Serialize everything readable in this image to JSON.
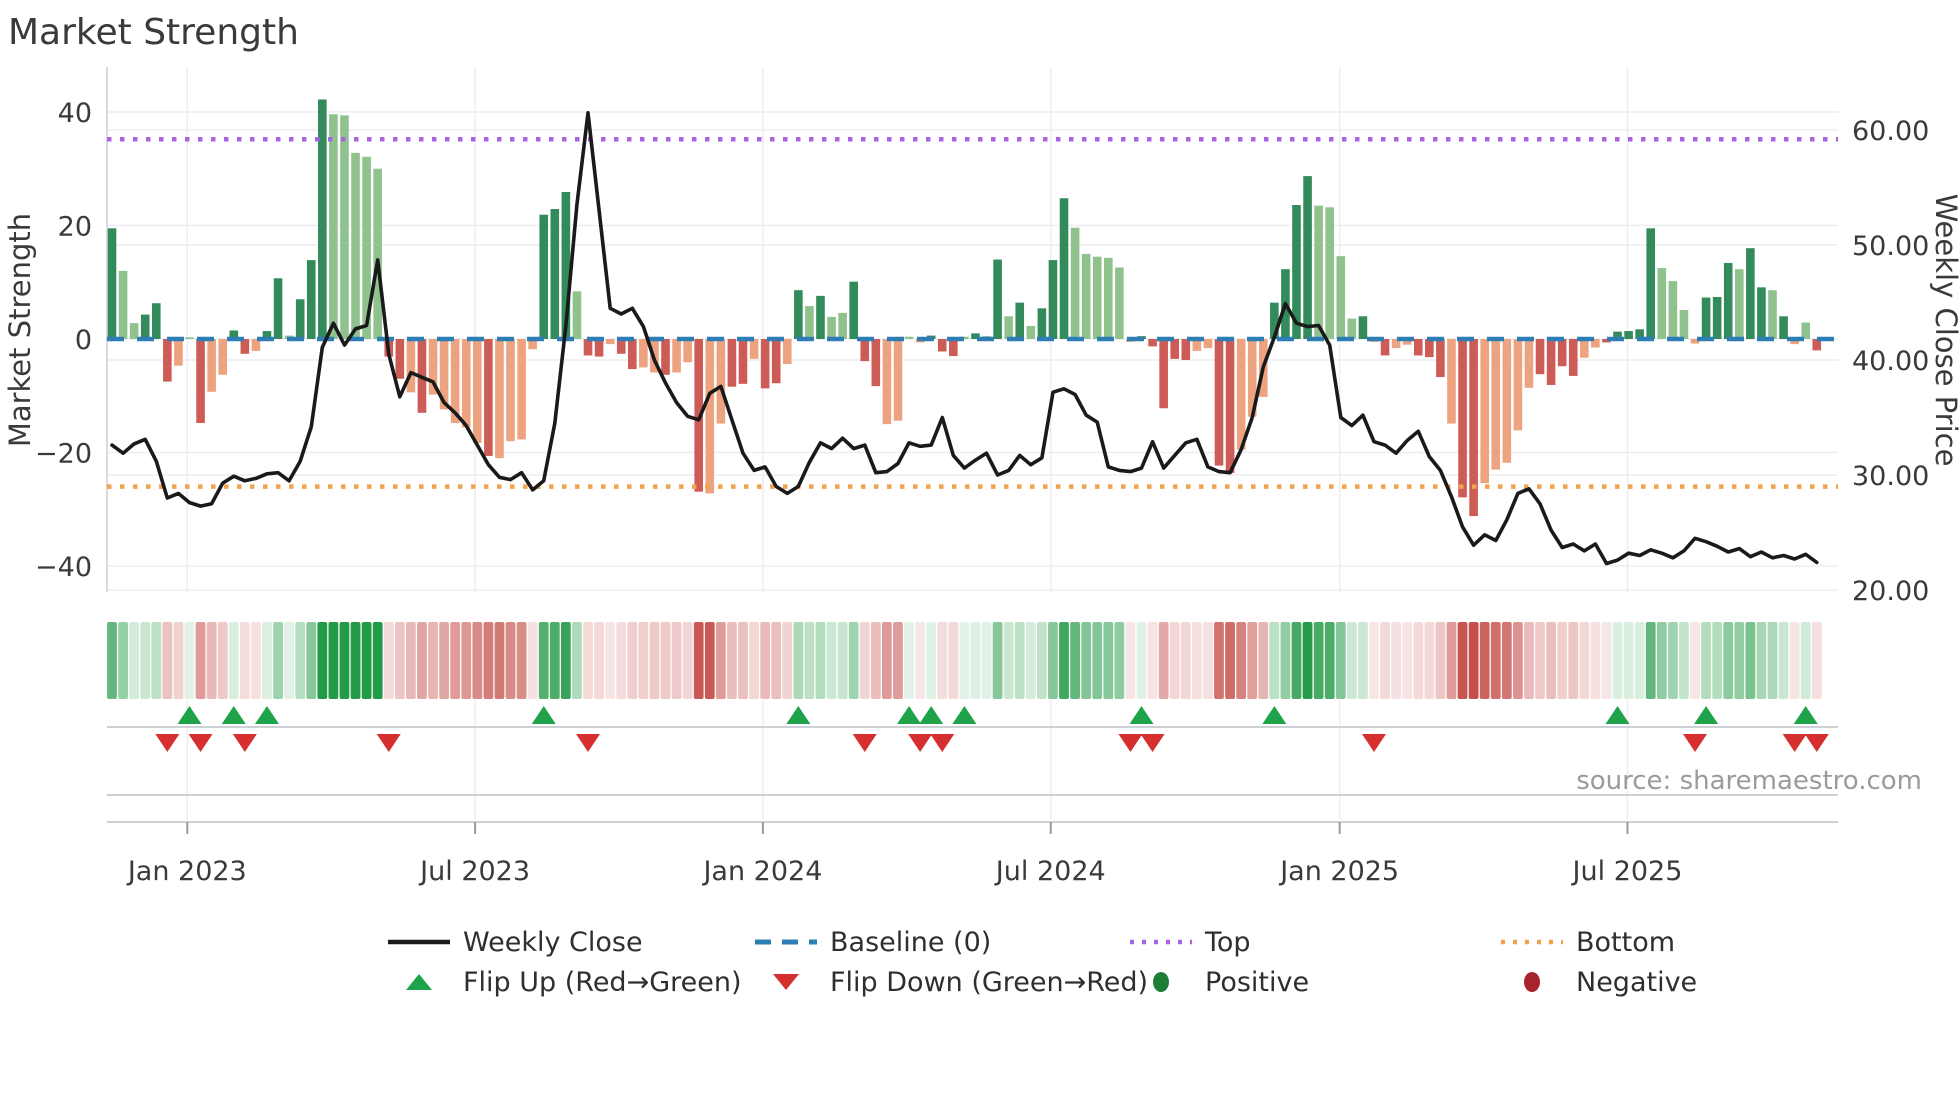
{
  "title": "Market Strength",
  "source_text": "source: sharemaestro.com",
  "axes": {
    "left_label": "Market Strength",
    "right_label": "Weekly Close Price",
    "left_ticks": [
      "40",
      "20",
      "0",
      "−20",
      "−40"
    ],
    "left_tick_values": [
      40,
      20,
      0,
      -20,
      -40
    ],
    "right_ticks": [
      "60.00",
      "50.00",
      "40.00",
      "30.00",
      "20.00"
    ],
    "right_tick_values": [
      60,
      50,
      40,
      30,
      20
    ],
    "x_ticks": [
      "Jan 2023",
      "Jul 2023",
      "Jan 2024",
      "Jul 2024",
      "Jan 2025",
      "Jul 2025"
    ],
    "x_tick_weeks": [
      6.8,
      32.8,
      58.8,
      84.8,
      110.9,
      136.9
    ]
  },
  "legend": {
    "items": [
      {
        "id": "weekly-close",
        "label": "Weekly Close",
        "icon": "solid-line"
      },
      {
        "id": "baseline",
        "label": "Baseline (0)",
        "icon": "dashed-line"
      },
      {
        "id": "top",
        "label": "Top",
        "icon": "dotted-line-purple"
      },
      {
        "id": "bottom",
        "label": "Bottom",
        "icon": "dotted-line-orange"
      },
      {
        "id": "flip-up",
        "label": "Flip Up (Red→Green)",
        "icon": "triangle-up"
      },
      {
        "id": "flip-down",
        "label": "Flip Down (Green→Red)",
        "icon": "triangle-down"
      },
      {
        "id": "positive",
        "label": "Positive",
        "icon": "circle-green"
      },
      {
        "id": "negative",
        "label": "Negative",
        "icon": "circle-red"
      }
    ]
  },
  "colors": {
    "bar_dark_green": "#338a5a",
    "bar_light_green": "#90c28e",
    "bar_dark_red": "#cd5c56",
    "bar_light_red": "#eda37f",
    "price_line": "#1a1a1a",
    "baseline": "#2e7eb5",
    "top_line": "#a763e0",
    "bottom_line": "#f2a34e",
    "flip_up_marker": "#1fa34a",
    "flip_down_marker": "#d62f2f",
    "positive_dot": "#1e7d34",
    "negative_dot": "#a8232d",
    "heat_green": "#229a46",
    "heat_red": "#c5504b",
    "gridline": "#ededf2",
    "lane_line": "#cfcfd6",
    "spine": "#d9d9e0"
  },
  "chart_data": {
    "type": "combo (bar + line + heatmap strip + flip markers)",
    "x_unit": "weekly, Nov 2022 – Nov 2025",
    "bar_series_name": "Market Strength",
    "line_series_name": "Weekly Close",
    "left_axis_range": [
      -45,
      47
    ],
    "right_axis_range": [
      20,
      60
    ],
    "baseline_value": 0,
    "top_threshold": 35.2,
    "bottom_threshold": -26,
    "bar_values": [
      19.5,
      12,
      2.8,
      4.3,
      6.3,
      -7.5,
      -4.7,
      0.3,
      -14.8,
      -9.3,
      -6.3,
      1.5,
      -2.6,
      -2.1,
      1.4,
      10.7,
      0.6,
      7,
      13.9,
      42.2,
      39.6,
      39.4,
      32.8,
      32.1,
      30,
      -3.1,
      -7,
      -9.4,
      -13,
      -9.8,
      -12.4,
      -14.8,
      -15.6,
      -18.3,
      -20.6,
      -21,
      -18,
      -17.7,
      -1.8,
      21.9,
      22.9,
      25.9,
      8.4,
      -2.9,
      -3.1,
      -0.9,
      -2.6,
      -5.3,
      -5,
      -5.9,
      -6.3,
      -5.9,
      -4.1,
      -26.9,
      -27.2,
      -14.9,
      -8.4,
      -7.9,
      -3.5,
      -8.7,
      -7.8,
      -4.4,
      8.6,
      5.8,
      7.6,
      3.9,
      4.6,
      10.1,
      -3.9,
      -8.3,
      -15,
      -14.4,
      0.4,
      -0.6,
      0.6,
      -2.2,
      -3,
      0.4,
      1,
      0.5,
      14,
      4,
      6.4,
      2.3,
      5.4,
      13.9,
      24.8,
      19.6,
      15,
      14.5,
      14.3,
      12.6,
      -0.5,
      0.5,
      -1.3,
      -12.2,
      -3.5,
      -3.7,
      -2.1,
      -1.6,
      -22.3,
      -23.6,
      -19.5,
      -13.7,
      -10.2,
      6.4,
      12.3,
      23.6,
      28.7,
      23.5,
      23.2,
      14.6,
      3.6,
      4,
      -0.5,
      -2.9,
      -1.6,
      -1,
      -2.9,
      -3.2,
      -6.7,
      -14.9,
      -27.9,
      -31.2,
      -25.4,
      -23,
      -21.8,
      -16.1,
      -8.6,
      -6.2,
      -8.1,
      -4.8,
      -6.5,
      -3.3,
      -1.5,
      -0.6,
      1.3,
      1.4,
      1.7,
      19.5,
      12.5,
      10.2,
      5.1,
      -0.8,
      7.3,
      7.4,
      13.4,
      12.3,
      16,
      9.1,
      8.6,
      4,
      -0.9,
      2.9,
      -2
    ],
    "bar_shades": [
      "dg",
      "lg",
      "lg",
      "dg",
      "dg",
      "dr",
      "lr",
      "lg",
      "dr",
      "lr",
      "lr",
      "dg",
      "dr",
      "lr",
      "dg",
      "dg",
      "lg",
      "dg",
      "dg",
      "dg",
      "lg",
      "lg",
      "lg",
      "lg",
      "lg",
      "dr",
      "dr",
      "lr",
      "dr",
      "lr",
      "lr",
      "lr",
      "lr",
      "lr",
      "dr",
      "lr",
      "lr",
      "lr",
      "lr",
      "dg",
      "dg",
      "dg",
      "lg",
      "dr",
      "dr",
      "lr",
      "dr",
      "dr",
      "lr",
      "lr",
      "dr",
      "lr",
      "lr",
      "dr",
      "lr",
      "lr",
      "dr",
      "dr",
      "lr",
      "dr",
      "dr",
      "lr",
      "dg",
      "lg",
      "dg",
      "lg",
      "lg",
      "dg",
      "dr",
      "dr",
      "lr",
      "lr",
      "lg",
      "lr",
      "dg",
      "dr",
      "dr",
      "lg",
      "dg",
      "lg",
      "dg",
      "lg",
      "dg",
      "lg",
      "dg",
      "dg",
      "dg",
      "lg",
      "lg",
      "lg",
      "lg",
      "lg",
      "lr",
      "dg",
      "dr",
      "dr",
      "dr",
      "dr",
      "lr",
      "lr",
      "dr",
      "dr",
      "lr",
      "lr",
      "lr",
      "dg",
      "dg",
      "dg",
      "dg",
      "lg",
      "lg",
      "lg",
      "lg",
      "dg",
      "lr",
      "dr",
      "lr",
      "lr",
      "dr",
      "dr",
      "dr",
      "lr",
      "dr",
      "dr",
      "lr",
      "lr",
      "lr",
      "lr",
      "lr",
      "dr",
      "dr",
      "dr",
      "dr",
      "lr",
      "lr",
      "dr",
      "dg",
      "dg",
      "dg",
      "dg",
      "lg",
      "lg",
      "lg",
      "lr",
      "dg",
      "dg",
      "dg",
      "lg",
      "dg",
      "dg",
      "lg",
      "dg",
      "lr",
      "lg",
      "dr"
    ],
    "line_values": [
      32.6,
      31.9,
      32.7,
      33.1,
      31.2,
      28,
      28.4,
      27.6,
      27.3,
      27.5,
      29.3,
      29.9,
      29.5,
      29.7,
      30.1,
      30.2,
      29.5,
      31.2,
      34.2,
      41.1,
      43.2,
      41.3,
      42.7,
      43,
      48.7,
      40.5,
      36.8,
      38.9,
      38.5,
      38.1,
      36.3,
      35.4,
      34.3,
      32.6,
      30.9,
      29.8,
      29.6,
      30.2,
      28.7,
      29.5,
      34.5,
      43,
      53.5,
      61.5,
      53,
      44.5,
      44,
      44.5,
      42.9,
      40,
      38,
      36.3,
      35.1,
      34.8,
      37.1,
      37.7,
      34.8,
      31.9,
      30.4,
      30.7,
      29,
      28.4,
      29,
      31.1,
      32.8,
      32.3,
      33.2,
      32.3,
      32.6,
      30.2,
      30.3,
      31,
      32.8,
      32.5,
      32.6,
      35,
      31.7,
      30.6,
      31.3,
      31.9,
      30,
      30.4,
      31.7,
      30.9,
      31.5,
      37.2,
      37.5,
      37,
      35.2,
      34.6,
      30.7,
      30.4,
      30.3,
      30.6,
      32.9,
      30.6,
      31.7,
      32.8,
      33.1,
      30.7,
      30.3,
      30.2,
      32.2,
      35,
      39.4,
      42,
      44.9,
      43.2,
      42.9,
      43,
      41.3,
      35,
      34.3,
      35.2,
      32.9,
      32.6,
      31.9,
      33,
      33.8,
      31.6,
      30.4,
      28.1,
      25.5,
      23.9,
      24.8,
      24.3,
      26.1,
      28.4,
      28.8,
      27.5,
      25.2,
      23.7,
      24,
      23.4,
      24,
      22.3,
      22.6,
      23.2,
      23,
      23.5,
      23.2,
      22.8,
      23.4,
      24.5,
      24.2,
      23.8,
      23.3,
      23.6,
      22.9,
      23.3,
      22.8,
      23,
      22.7,
      23.1,
      22.4
    ],
    "flip_up_weeks": [
      7,
      11,
      14,
      39,
      62,
      72,
      74,
      77,
      93,
      105,
      136,
      144,
      153
    ],
    "flip_down_weeks": [
      5,
      8,
      12,
      25,
      43,
      68,
      73,
      75,
      92,
      94,
      114,
      143,
      152,
      154
    ],
    "heatmap": "per-week cells colored by sign and magnitude of bar_values",
    "grid": "horizontal gridlines at both axes' ticks, faint vertical lines at month ticks",
    "legend_position": "bottom, two rows"
  }
}
